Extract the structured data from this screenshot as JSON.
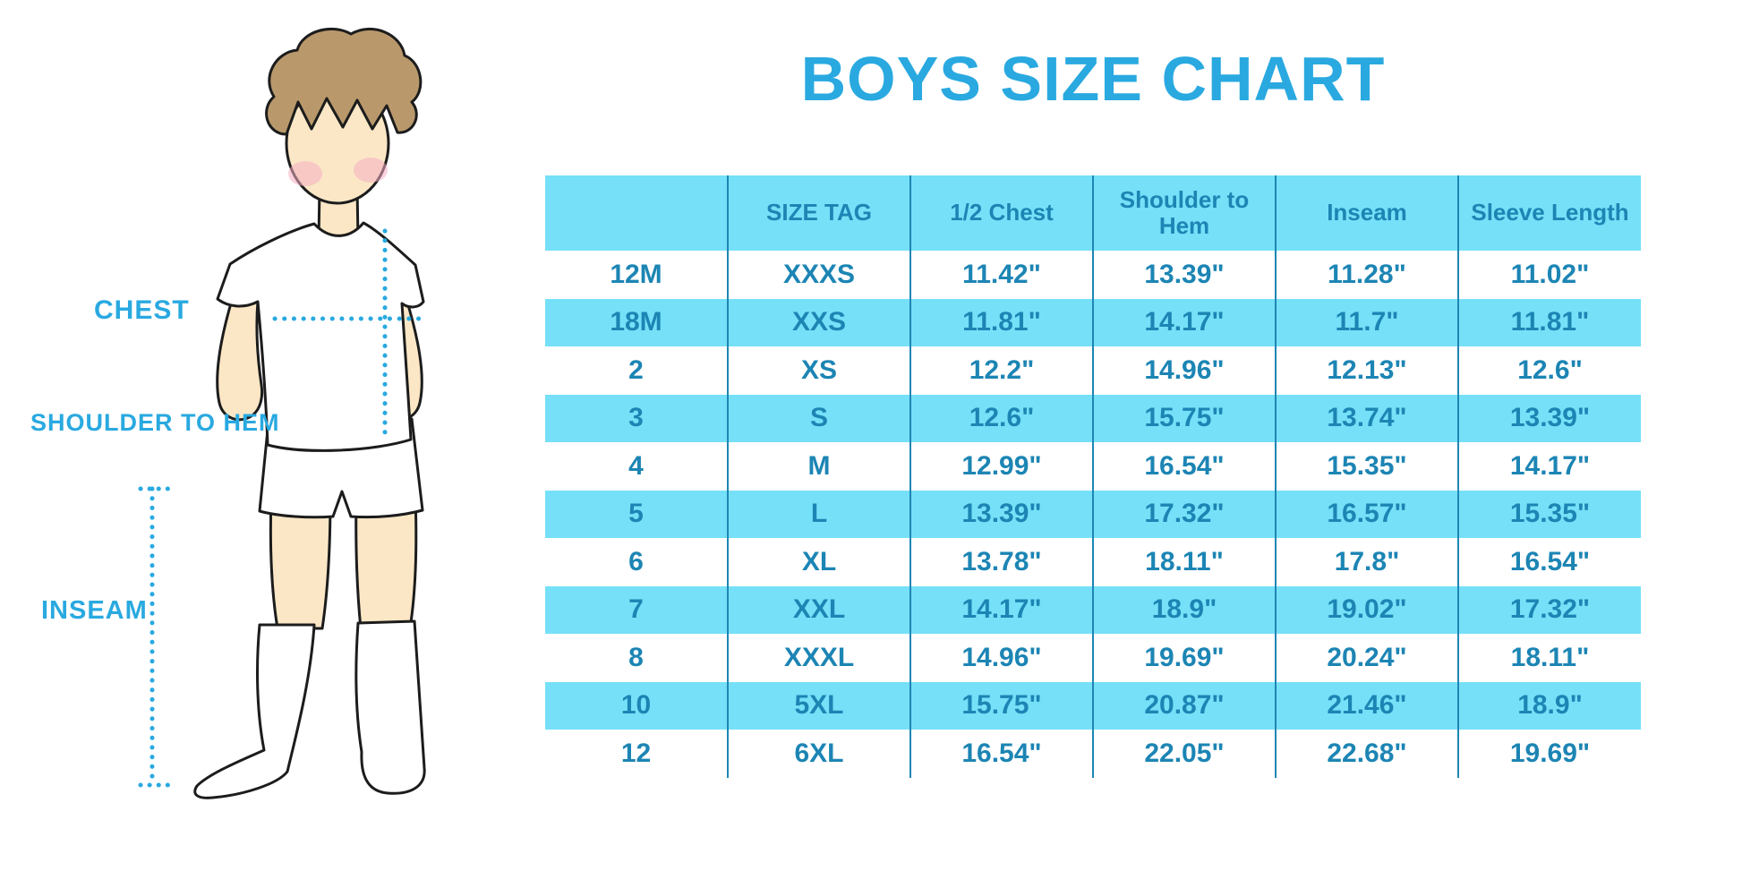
{
  "title": "BOYS SIZE CHART",
  "figure_labels": {
    "chest": "CHEST",
    "shoulder_to_hem": "SHOULDER TO HEM",
    "inseam": "INSEAM"
  },
  "colors": {
    "title_blue": "#29a9e0",
    "row_highlight_blue": "#76e0f8",
    "table_text_blue": "#1c85b4",
    "column_divider_blue": "#1d86b4",
    "measure_dotted_line": "#29a9e0",
    "skin": "#fbe7c6",
    "hair": "#b9996c",
    "blush": "#f5aec2",
    "illustration_outline": "#1c1c1c"
  },
  "chart_data": {
    "type": "table",
    "title": "BOYS SIZE CHART",
    "units": "inches",
    "legend_position": "none",
    "columns": [
      "",
      "SIZE TAG",
      "1/2 Chest",
      "Shoulder to Hem",
      "Inseam",
      "Sleeve Length"
    ],
    "rows": [
      [
        "12M",
        "XXXS",
        "11.42\"",
        "13.39\"",
        "11.28\"",
        "11.02\""
      ],
      [
        "18M",
        "XXS",
        "11.81\"",
        "14.17\"",
        "11.7\"",
        "11.81\""
      ],
      [
        "2",
        "XS",
        "12.2\"",
        "14.96\"",
        "12.13\"",
        "12.6\""
      ],
      [
        "3",
        "S",
        "12.6\"",
        "15.75\"",
        "13.74\"",
        "13.39\""
      ],
      [
        "4",
        "M",
        "12.99\"",
        "16.54\"",
        "15.35\"",
        "14.17\""
      ],
      [
        "5",
        "L",
        "13.39\"",
        "17.32\"",
        "16.57\"",
        "15.35\""
      ],
      [
        "6",
        "XL",
        "13.78\"",
        "18.11\"",
        "17.8\"",
        "16.54\""
      ],
      [
        "7",
        "XXL",
        "14.17\"",
        "18.9\"",
        "19.02\"",
        "17.32\""
      ],
      [
        "8",
        "XXXL",
        "14.96\"",
        "19.69\"",
        "20.24\"",
        "18.11\""
      ],
      [
        "10",
        "5XL",
        "15.75\"",
        "20.87\"",
        "21.46\"",
        "18.9\""
      ],
      [
        "12",
        "6XL",
        "16.54\"",
        "22.05\"",
        "22.68\"",
        "19.69\""
      ]
    ],
    "row_striping": "header and every 2nd data row light blue, others white"
  }
}
